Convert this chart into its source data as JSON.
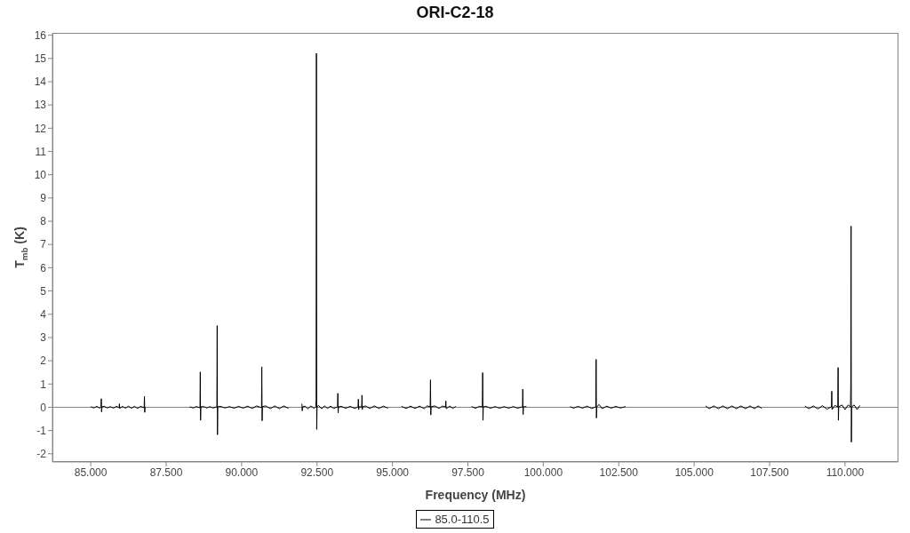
{
  "chart_data": {
    "type": "line",
    "title": "ORI-C2-18",
    "xlabel": "Frequency (MHz)",
    "ylabel": "T$_{mb}$ (K)",
    "xlim": [
      83.73,
      111.77
    ],
    "xticks": [
      {
        "value": 85,
        "label": "85.000"
      },
      {
        "value": 87.5,
        "label": "87.500"
      },
      {
        "value": 90,
        "label": "90.000"
      },
      {
        "value": 92.5,
        "label": "92.500"
      },
      {
        "value": 95,
        "label": "95.000"
      },
      {
        "value": 97.5,
        "label": "97.500"
      },
      {
        "value": 100,
        "label": "100.000"
      },
      {
        "value": 102.5,
        "label": "102.500"
      },
      {
        "value": 105,
        "label": "105.000"
      },
      {
        "value": 107.5,
        "label": "107.500"
      },
      {
        "value": 110,
        "label": "110.000"
      }
    ],
    "ylim": [
      -2.35,
      16.1
    ],
    "yticks": [
      -2,
      -1,
      0,
      1,
      2,
      3,
      4,
      5,
      6,
      7,
      8,
      9,
      10,
      11,
      12,
      13,
      14,
      15,
      16
    ],
    "legend": "bottom",
    "ref_lines": [
      {
        "axis": "y",
        "value": 0,
        "color": "#808080"
      }
    ],
    "x": [
      85.0,
      85.1,
      85.2,
      85.3,
      85.34,
      85.35,
      85.36,
      85.37,
      85.45,
      85.55,
      85.65,
      85.75,
      85.85,
      85.94,
      85.95,
      85.96,
      86.05,
      86.15,
      86.25,
      86.35,
      86.45,
      86.55,
      86.65,
      86.77,
      86.78,
      86.79,
      86.8,
      87.5,
      88.28,
      88.4,
      88.5,
      88.62,
      88.63,
      88.64,
      88.65,
      88.75,
      88.85,
      88.95,
      89.05,
      89.18,
      89.19,
      89.2,
      89.21,
      89.3,
      89.45,
      89.6,
      89.75,
      89.9,
      90.05,
      90.2,
      90.35,
      90.5,
      90.66,
      90.67,
      90.68,
      90.69,
      90.8,
      90.95,
      91.1,
      91.25,
      91.4,
      91.55,
      91.8,
      92.0,
      92.01,
      92.02,
      92.1,
      92.2,
      92.3,
      92.4,
      92.46,
      92.47,
      92.48,
      92.49,
      92.5,
      92.55,
      92.65,
      92.75,
      92.85,
      92.95,
      93.05,
      93.18,
      93.19,
      93.2,
      93.21,
      93.3,
      93.45,
      93.6,
      93.75,
      93.86,
      93.87,
      93.88,
      93.89,
      93.98,
      93.99,
      94.0,
      94.01,
      94.1,
      94.25,
      94.4,
      94.55,
      94.7,
      94.85,
      95.1,
      95.3,
      95.45,
      95.6,
      95.75,
      95.9,
      96.05,
      96.15,
      96.25,
      96.26,
      96.27,
      96.28,
      96.4,
      96.55,
      96.65,
      96.76,
      96.77,
      96.78,
      96.9,
      97.0,
      97.1,
      97.35,
      97.62,
      97.75,
      97.88,
      97.98,
      97.99,
      98.0,
      98.01,
      98.1,
      98.25,
      98.4,
      98.55,
      98.7,
      98.85,
      99.0,
      99.15,
      99.31,
      99.32,
      99.33,
      99.34,
      99.44,
      100.2,
      100.89,
      101.0,
      101.15,
      101.3,
      101.45,
      101.6,
      101.74,
      101.75,
      101.76,
      101.77,
      101.85,
      101.95,
      102.1,
      102.25,
      102.4,
      102.55,
      102.73,
      104.0,
      105.38,
      105.5,
      105.65,
      105.8,
      105.95,
      106.1,
      106.25,
      106.4,
      106.55,
      106.7,
      106.85,
      107.0,
      107.12,
      107.24,
      108.0,
      108.67,
      108.8,
      108.95,
      109.1,
      109.25,
      109.4,
      109.55,
      109.56,
      109.57,
      109.66,
      109.76,
      109.77,
      109.78,
      109.79,
      109.9,
      110.0,
      110.1,
      110.18,
      110.19,
      110.2,
      110.21,
      110.22,
      110.3,
      110.4,
      110.49
    ],
    "series": [
      {
        "name": "85.0-110.5",
        "color": "#000000",
        "values": [
          0.03,
          -0.03,
          0.04,
          -0.04,
          0.02,
          0.37,
          -0.2,
          0.02,
          0.04,
          -0.03,
          0.03,
          -0.04,
          0.04,
          -0.02,
          0.15,
          -0.05,
          0.04,
          -0.04,
          0.05,
          -0.04,
          0.04,
          -0.05,
          0.04,
          -0.02,
          0.47,
          -0.22,
          0.02,
          null,
          0.02,
          -0.03,
          0.03,
          -0.02,
          1.52,
          -0.56,
          0.02,
          0.03,
          -0.03,
          0.03,
          -0.03,
          0.02,
          3.51,
          -1.18,
          0.02,
          0.04,
          -0.03,
          0.03,
          -0.04,
          0.04,
          -0.04,
          0.05,
          -0.05,
          0.06,
          -0.02,
          1.74,
          -0.58,
          0.03,
          0.06,
          -0.06,
          0.06,
          -0.06,
          0.06,
          -0.05,
          null,
          0.15,
          -0.15,
          0.02,
          0.05,
          -0.06,
          0.06,
          -0.05,
          0.02,
          0.35,
          15.22,
          -0.95,
          0.02,
          0.08,
          -0.06,
          0.06,
          -0.05,
          0.05,
          -0.05,
          0.02,
          0.6,
          -0.24,
          0.02,
          0.04,
          -0.04,
          0.04,
          -0.05,
          0.02,
          0.35,
          -0.1,
          0.02,
          0.02,
          0.52,
          -0.1,
          0.02,
          0.06,
          -0.05,
          0.06,
          -0.05,
          0.05,
          -0.04,
          null,
          0.04,
          -0.05,
          0.05,
          -0.05,
          0.05,
          -0.06,
          0.06,
          0.02,
          1.18,
          -0.33,
          0.02,
          0.06,
          -0.05,
          0.05,
          0.02,
          0.27,
          -0.06,
          0.05,
          -0.05,
          0.04,
          null,
          0.03,
          -0.04,
          0.04,
          0.02,
          1.49,
          -0.56,
          0.02,
          0.04,
          -0.04,
          0.03,
          -0.04,
          0.03,
          -0.04,
          0.03,
          -0.04,
          0.02,
          0.78,
          -0.31,
          0.02,
          0.03,
          null,
          0.03,
          -0.04,
          0.04,
          -0.04,
          0.05,
          -0.05,
          0.02,
          2.06,
          -0.46,
          0.02,
          0.12,
          -0.06,
          0.05,
          -0.04,
          0.04,
          -0.03,
          0.03,
          null,
          0.06,
          -0.06,
          0.06,
          -0.06,
          0.06,
          -0.06,
          0.06,
          -0.06,
          0.06,
          -0.06,
          0.06,
          -0.06,
          0.06,
          -0.05,
          null,
          0.05,
          -0.06,
          0.06,
          -0.07,
          0.07,
          -0.08,
          0.02,
          0.69,
          -0.1,
          0.08,
          0.02,
          1.71,
          -0.56,
          0.02,
          0.1,
          -0.1,
          0.1,
          0.02,
          0.9,
          7.79,
          -1.5,
          0.02,
          0.1,
          -0.1,
          0.08
        ]
      }
    ]
  }
}
